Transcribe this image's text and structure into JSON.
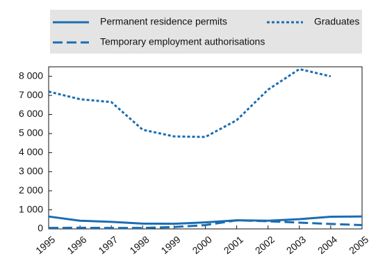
{
  "chart_data": {
    "type": "line",
    "categories": [
      "1995",
      "1996",
      "1997",
      "1998",
      "1999",
      "2000",
      "2001",
      "2002",
      "2003",
      "2004",
      "2005"
    ],
    "series": [
      {
        "name": "Permanent residence permits",
        "color": "#1a6db3",
        "style": "solid",
        "values": [
          650,
          430,
          370,
          280,
          270,
          340,
          450,
          430,
          510,
          640,
          650
        ]
      },
      {
        "name": "Graduates",
        "color": "#1a6db3",
        "style": "dotted",
        "values": [
          7200,
          6800,
          6650,
          5200,
          4850,
          4820,
          5700,
          7300,
          8380,
          8000,
          null
        ]
      },
      {
        "name": "Temporary employment authorisations",
        "color": "#1a6db3",
        "style": "dashed",
        "values": [
          50,
          60,
          50,
          50,
          100,
          200,
          450,
          400,
          330,
          260,
          200
        ]
      }
    ],
    "ylim": [
      0,
      8500
    ],
    "yticks": [
      0,
      {
        "value": 1000,
        "label": "1 000"
      },
      {
        "value": 2000,
        "label": "2 000"
      },
      {
        "value": 3000,
        "label": "3 000"
      },
      {
        "value": 4000,
        "label": "4 000"
      },
      {
        "value": 5000,
        "label": "5 000"
      },
      {
        "value": 6000,
        "label": "6 000"
      },
      {
        "value": 7000,
        "label": "7 000"
      },
      {
        "value": 8000,
        "label": "8 000"
      }
    ],
    "grid": false
  }
}
